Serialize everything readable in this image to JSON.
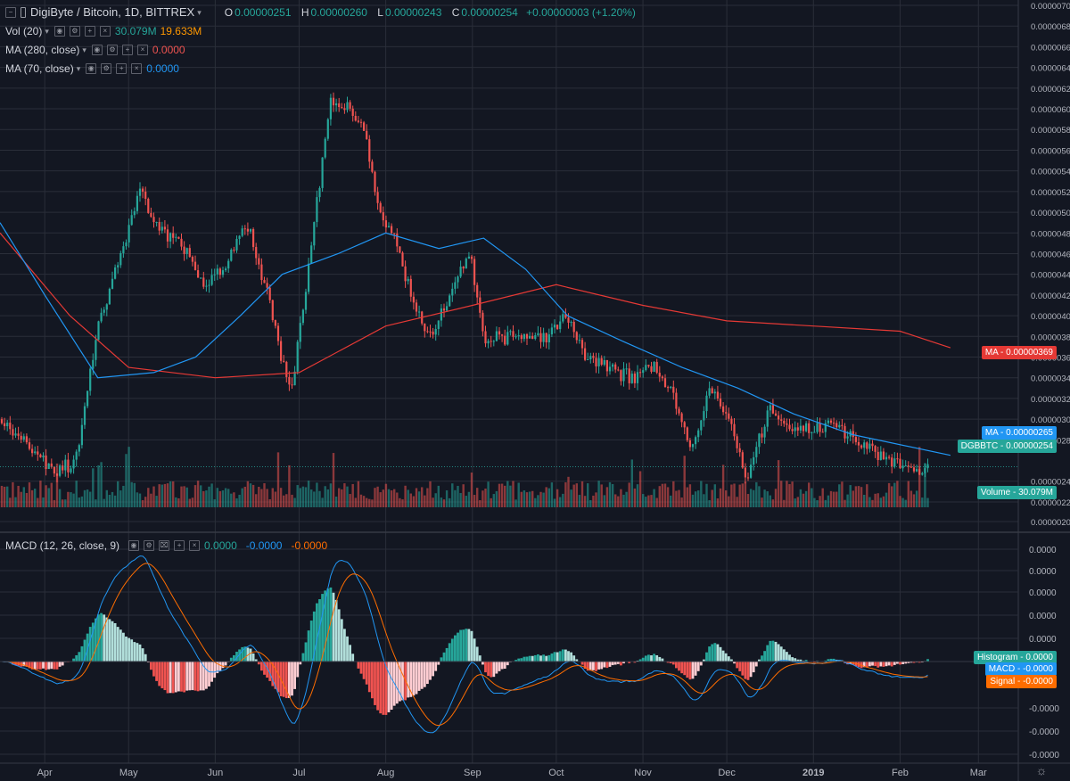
{
  "header": {
    "symbol_title": "DigiByte / Bitcoin, 1D, BITTREX",
    "ohlc": {
      "o_label": "O",
      "o_value": "0.00000251",
      "h_label": "H",
      "h_value": "0.00000260",
      "l_label": "L",
      "l_value": "0.00000243",
      "c_label": "C",
      "c_value": "0.00000254",
      "change": "+0.00000003 (+1.20%)"
    }
  },
  "indicators": {
    "vol": {
      "label": "Vol (20)",
      "value1": "30.079M",
      "value2": "19.633M"
    },
    "ma280": {
      "label": "MA (280, close)",
      "value": "0.0000"
    },
    "ma70": {
      "label": "MA (70, close)",
      "value": "0.0000"
    },
    "macd": {
      "label": "MACD (12, 26, close, 9)",
      "v1": "0.0000",
      "v2": "-0.0000",
      "v3": "-0.0000"
    }
  },
  "price_axis": {
    "ticks": [
      "0.00000700",
      "0.00000680",
      "0.00000660",
      "0.00000640",
      "0.00000620",
      "0.00000600",
      "0.00000580",
      "0.00000560",
      "0.00000540",
      "0.00000520",
      "0.00000500",
      "0.00000480",
      "0.00000460",
      "0.00000440",
      "0.00000420",
      "0.00000400",
      "0.00000380",
      "0.00000360",
      "0.00000340",
      "0.00000320",
      "0.00000300",
      "0.00000280",
      "0.00000240",
      "0.00000220",
      "0.00000201"
    ],
    "tags": {
      "ma_red": {
        "label": "MA",
        "value": "0.00000369"
      },
      "ma_blue": {
        "label": "MA",
        "value": "0.00000265"
      },
      "last": {
        "label": "DGBBTC",
        "value": "0.00000254"
      },
      "volume": {
        "label": "Volume",
        "value": "30.079M"
      }
    }
  },
  "macd_axis": {
    "ticks": [
      "0.0000",
      "0.0000",
      "0.0000",
      "0.0000",
      "0.0000",
      "-0.0000",
      "-0.0000",
      "-0.0000"
    ],
    "tags": {
      "histogram": {
        "label": "Histogram",
        "value": "0.0000"
      },
      "macd": {
        "label": "MACD",
        "value": "-0.0000"
      },
      "signal": {
        "label": "Signal",
        "value": "-0.0000"
      }
    }
  },
  "time_axis": {
    "labels": [
      "Apr",
      "May",
      "Jun",
      "Jul",
      "Aug",
      "Sep",
      "Oct",
      "Nov",
      "Dec",
      "2019",
      "Feb",
      "Mar"
    ]
  },
  "colors": {
    "background": "#131722",
    "up": "#26a69a",
    "down": "#ef5350",
    "ma70": "#2196f3",
    "ma280": "#e53935",
    "signal": "#ff6d00",
    "grid": "#2a2e39"
  },
  "chart_data": {
    "type": "candlestick",
    "title": "DigiByte / Bitcoin, 1D, BITTREX",
    "interval": "1D",
    "y_range": [
      2.01e-06,
      7e-06
    ],
    "close_path": [
      [
        "2018-03-16",
        3e-06
      ],
      [
        "2018-03-25",
        2.75e-06
      ],
      [
        "2018-04-05",
        2.5e-06
      ],
      [
        "2018-04-12",
        2.6e-06
      ],
      [
        "2018-04-20",
        3.9e-06
      ],
      [
        "2018-04-28",
        4.6e-06
      ],
      [
        "2018-05-05",
        5.2e-06
      ],
      [
        "2018-05-12",
        4.8e-06
      ],
      [
        "2018-05-20",
        4.7e-06
      ],
      [
        "2018-05-28",
        4.3e-06
      ],
      [
        "2018-06-05",
        4.5e-06
      ],
      [
        "2018-06-12",
        4.9e-06
      ],
      [
        "2018-06-20",
        4.2e-06
      ],
      [
        "2018-06-28",
        3.2e-06
      ],
      [
        "2018-07-04",
        4.4e-06
      ],
      [
        "2018-07-08",
        5.2e-06
      ],
      [
        "2018-07-12",
        6.1e-06
      ],
      [
        "2018-07-18",
        6e-06
      ],
      [
        "2018-07-24",
        5.8e-06
      ],
      [
        "2018-07-30",
        5e-06
      ],
      [
        "2018-08-05",
        4.7e-06
      ],
      [
        "2018-08-12",
        4e-06
      ],
      [
        "2018-08-18",
        3.8e-06
      ],
      [
        "2018-08-25",
        4.3e-06
      ],
      [
        "2018-08-31",
        4.6e-06
      ],
      [
        "2018-09-05",
        3.8e-06
      ],
      [
        "2018-09-12",
        3.8e-06
      ],
      [
        "2018-09-20",
        3.8e-06
      ],
      [
        "2018-09-28",
        3.8e-06
      ],
      [
        "2018-10-05",
        4e-06
      ],
      [
        "2018-10-12",
        3.6e-06
      ],
      [
        "2018-10-20",
        3.5e-06
      ],
      [
        "2018-10-28",
        3.4e-06
      ],
      [
        "2018-11-05",
        3.5e-06
      ],
      [
        "2018-11-12",
        3.2e-06
      ],
      [
        "2018-11-18",
        2.7e-06
      ],
      [
        "2018-11-25",
        3.3e-06
      ],
      [
        "2018-12-02",
        3e-06
      ],
      [
        "2018-12-08",
        2.4e-06
      ],
      [
        "2018-12-16",
        3.1e-06
      ],
      [
        "2018-12-24",
        2.9e-06
      ],
      [
        "2019-01-01",
        2.9e-06
      ],
      [
        "2019-01-08",
        3e-06
      ],
      [
        "2019-01-15",
        2.8e-06
      ],
      [
        "2019-01-22",
        2.7e-06
      ],
      [
        "2019-01-29",
        2.6e-06
      ],
      [
        "2019-02-05",
        2.5e-06
      ],
      [
        "2019-02-12",
        2.5e-06
      ],
      [
        "2019-02-19",
        2.54e-06
      ]
    ],
    "ma70_path": [
      [
        "2018-03-16",
        4.9e-06
      ],
      [
        "2018-04-01",
        4.2e-06
      ],
      [
        "2018-04-20",
        3.4e-06
      ],
      [
        "2018-05-10",
        3.45e-06
      ],
      [
        "2018-05-25",
        3.6e-06
      ],
      [
        "2018-06-10",
        4e-06
      ],
      [
        "2018-06-25",
        4.4e-06
      ],
      [
        "2018-07-15",
        4.6e-06
      ],
      [
        "2018-08-01",
        4.8e-06
      ],
      [
        "2018-08-20",
        4.65e-06
      ],
      [
        "2018-09-05",
        4.75e-06
      ],
      [
        "2018-09-20",
        4.45e-06
      ],
      [
        "2018-10-05",
        4e-06
      ],
      [
        "2018-10-25",
        3.75e-06
      ],
      [
        "2018-11-15",
        3.5e-06
      ],
      [
        "2018-12-05",
        3.3e-06
      ],
      [
        "2018-12-25",
        3.05e-06
      ],
      [
        "2019-01-15",
        2.85e-06
      ],
      [
        "2019-02-19",
        2.65e-06
      ]
    ],
    "ma280_path": [
      [
        "2018-03-16",
        4.8e-06
      ],
      [
        "2018-04-10",
        4e-06
      ],
      [
        "2018-05-01",
        3.5e-06
      ],
      [
        "2018-06-01",
        3.4e-06
      ],
      [
        "2018-07-01",
        3.45e-06
      ],
      [
        "2018-08-01",
        3.9e-06
      ],
      [
        "2018-09-01",
        4.1e-06
      ],
      [
        "2018-10-01",
        4.3e-06
      ],
      [
        "2018-11-01",
        4.1e-06
      ],
      [
        "2018-12-01",
        3.95e-06
      ],
      [
        "2019-01-01",
        3.9e-06
      ],
      [
        "2019-02-01",
        3.85e-06
      ],
      [
        "2019-02-19",
        3.69e-06
      ]
    ],
    "volume_last": "30.079M"
  }
}
